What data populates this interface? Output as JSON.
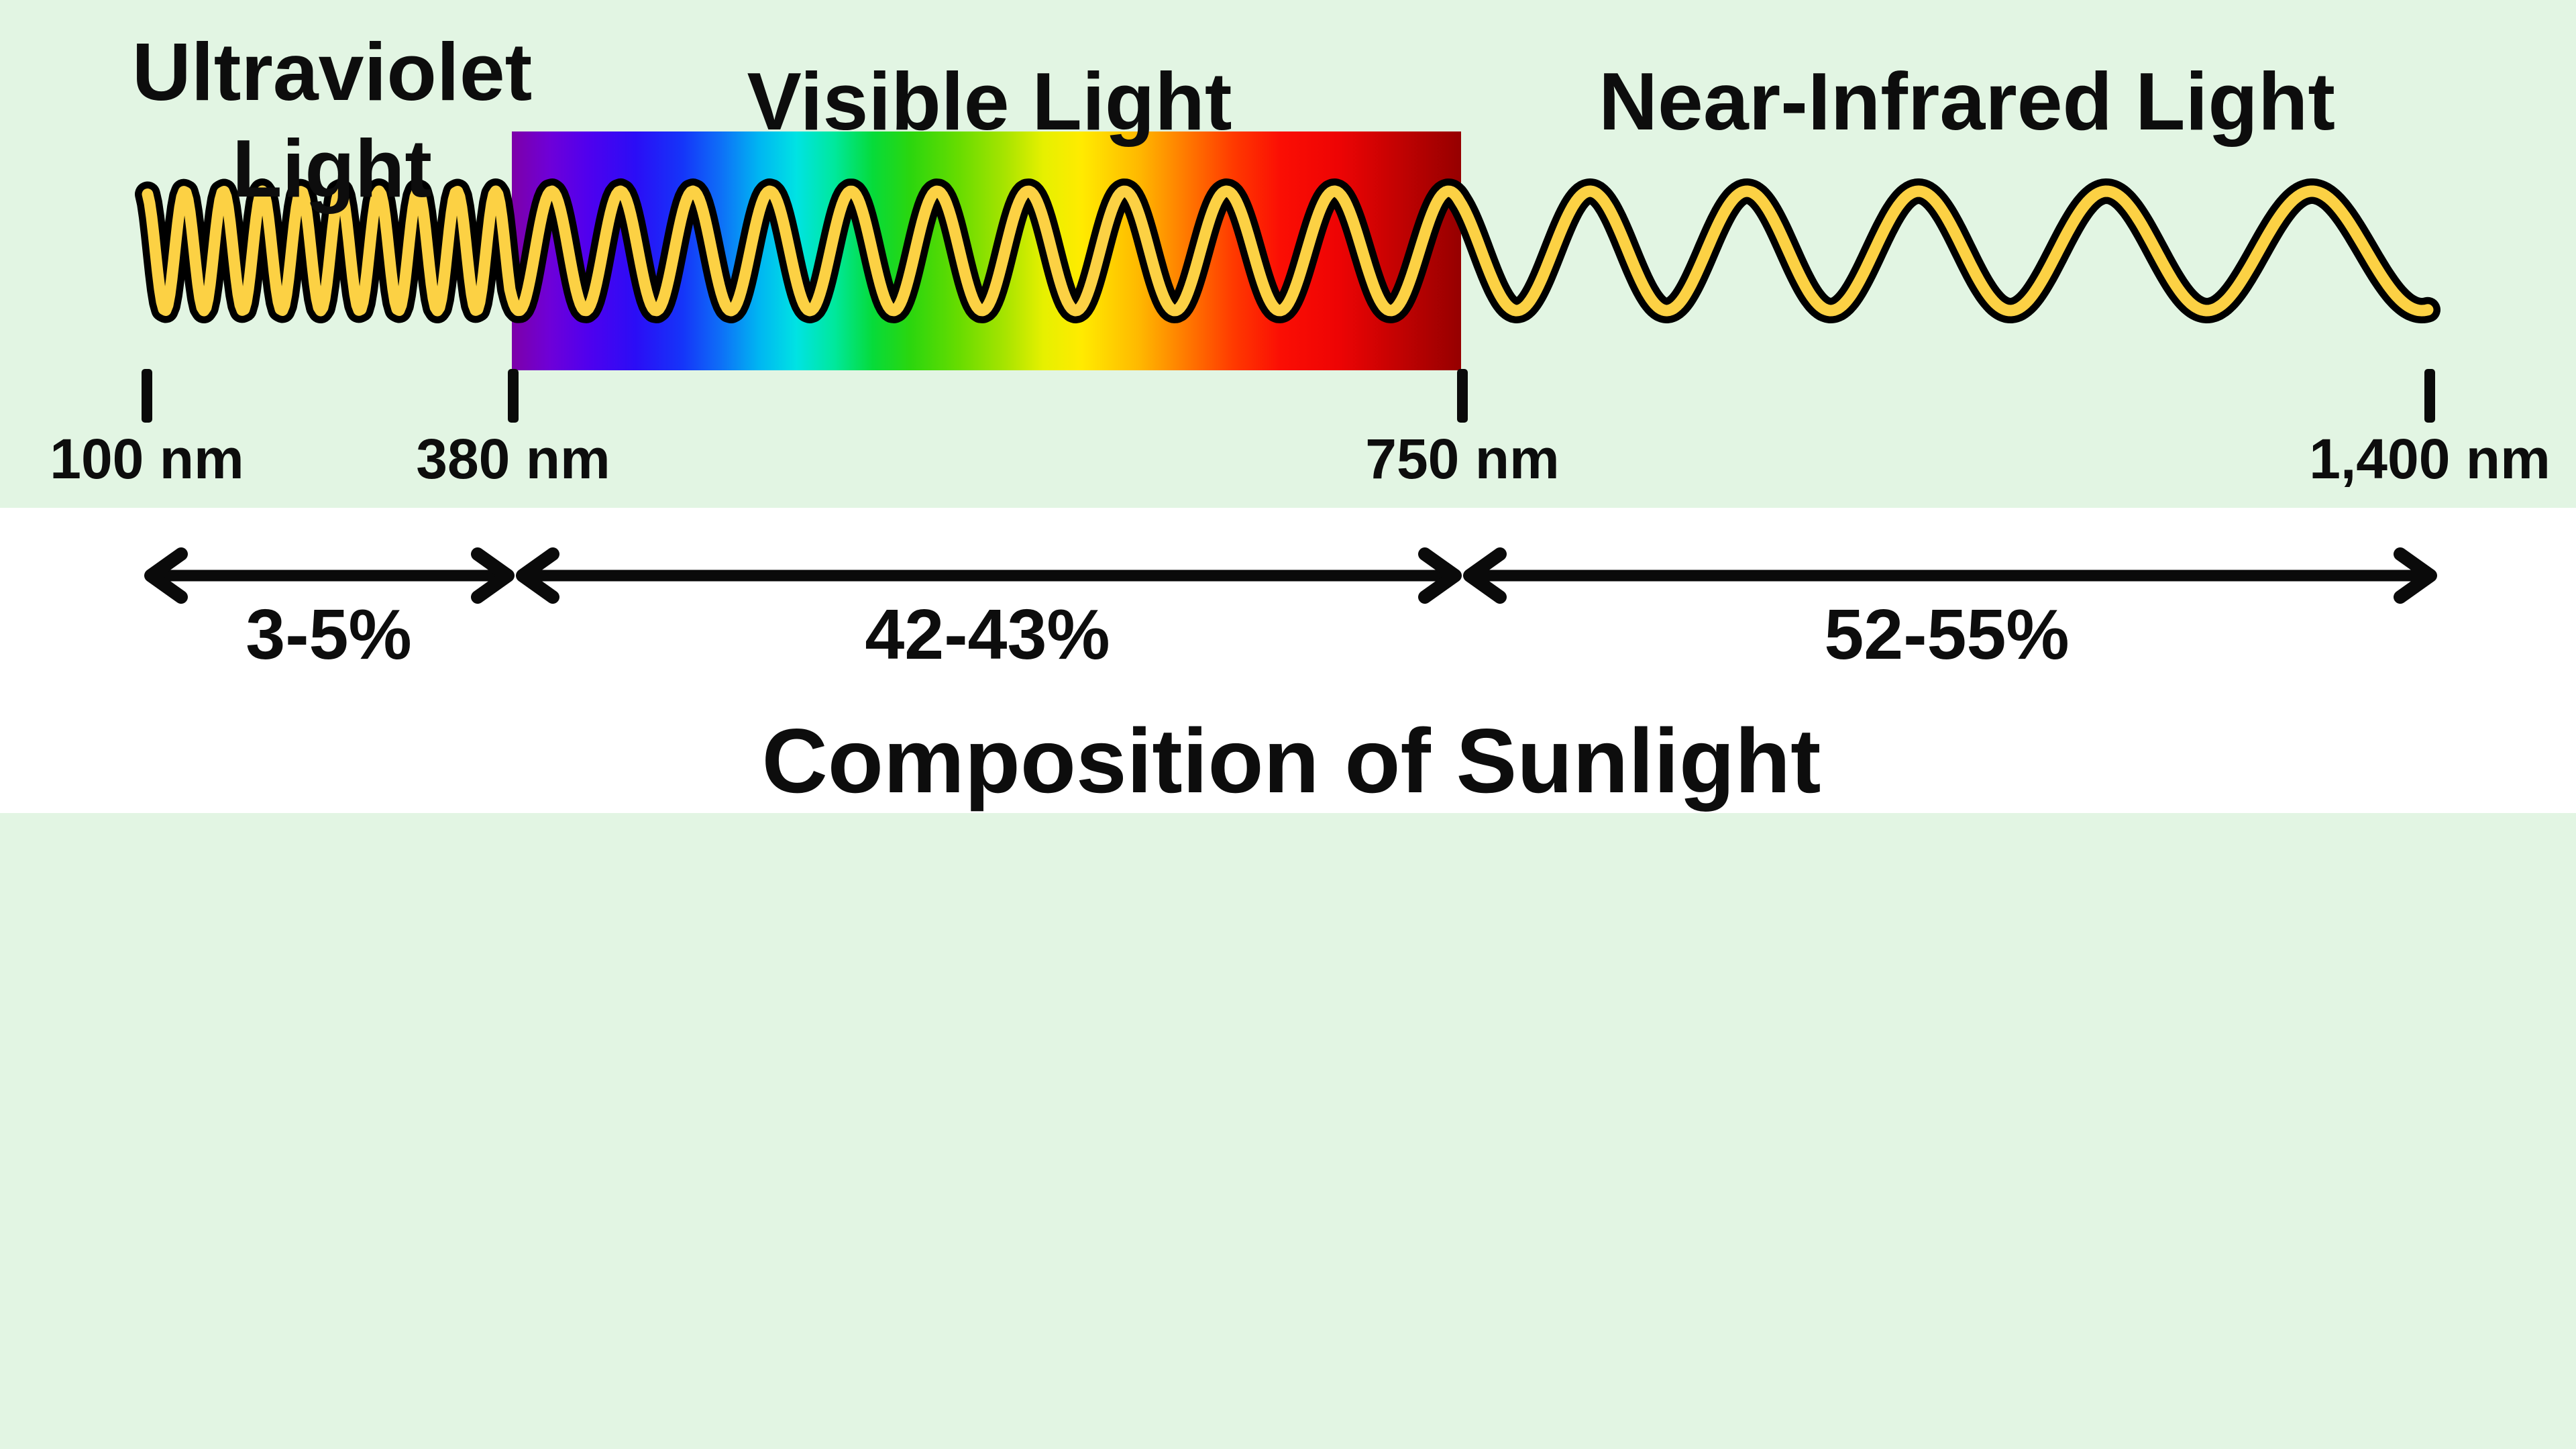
{
  "title": "Composition of Sunlight",
  "bands": [
    {
      "label": "Ultraviolet\nLight",
      "tick": "100 nm",
      "share": "3-5%"
    },
    {
      "label": "Visible Light",
      "tick": "380 nm",
      "share": "42-43%"
    },
    {
      "label": "Near-Infrared Light",
      "tick": "750 nm",
      "share": "52-55%"
    }
  ],
  "axis": {
    "end_tick": "1,400 nm"
  },
  "colors": {
    "background": "#E2F5E3",
    "panel": "#FFFFFF",
    "wave_core": "#FCD144",
    "wave_outline": "#000000",
    "ink": "#0D0D0D",
    "spectrum_start": "#7D00A8",
    "spectrum_end": "#960000"
  }
}
